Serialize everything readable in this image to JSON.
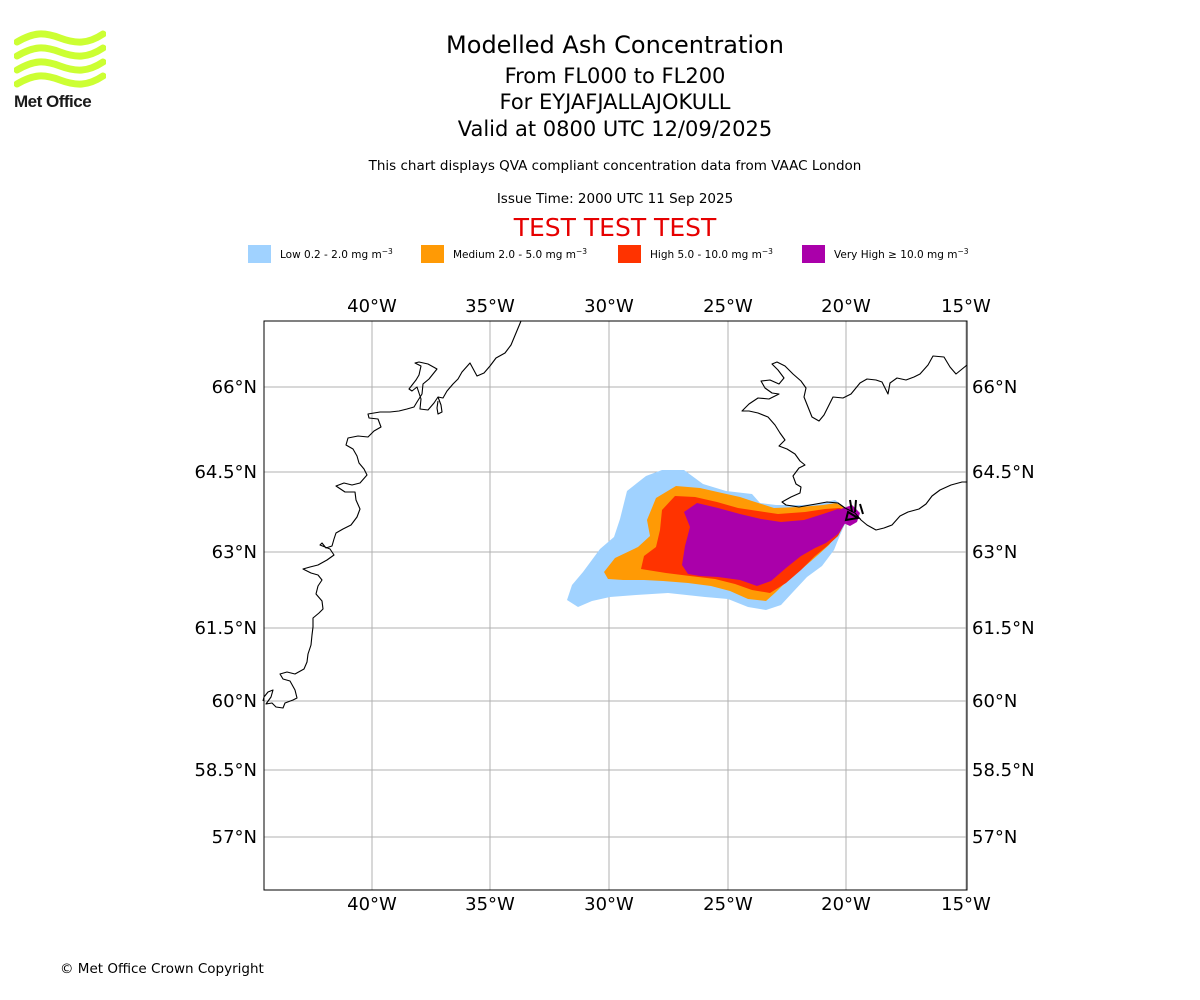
{
  "logo": {
    "text": "Met Office",
    "wave_color": "#ccff33"
  },
  "header": {
    "title": "Modelled Ash Concentration",
    "level_range": "From FL000 to FL200",
    "volcano": "For EYJAFJALLAJOKULL",
    "valid_time": "Valid at 0800 UTC 12/09/2025",
    "description": "This chart displays QVA compliant concentration data from VAAC London",
    "issue_time": "Issue Time: 2000 UTC 11 Sep 2025",
    "test_banner": "TEST TEST TEST",
    "test_color": "#e60000"
  },
  "legend": [
    {
      "label": "Low 0.2 - 2.0 mg m",
      "exponent": "−3",
      "color": "#a0d2ff"
    },
    {
      "label": "Medium 2.0 - 5.0 mg m",
      "exponent": "−3",
      "color": "#ff9a05"
    },
    {
      "label": "High 5.0 - 10.0 mg m",
      "exponent": "−3",
      "color": "#ff3300"
    },
    {
      "label": "Very High  ≥  10.0 mg m",
      "exponent": "−3",
      "color": "#aa00aa"
    }
  ],
  "map": {
    "lon_labels": [
      "40°W",
      "35°W",
      "30°W",
      "25°W",
      "20°W",
      "15°W"
    ],
    "lat_labels": [
      "66°N",
      "64.5°N",
      "63°N",
      "61.5°N",
      "60°N",
      "58.5°N",
      "57°N"
    ],
    "gridlines": true,
    "grid_color": "#b0b0b0",
    "coastline_color": "#000000",
    "volcano_marker": "triangle"
  },
  "footer": {
    "copyright": "© Met Office Crown Copyright"
  }
}
